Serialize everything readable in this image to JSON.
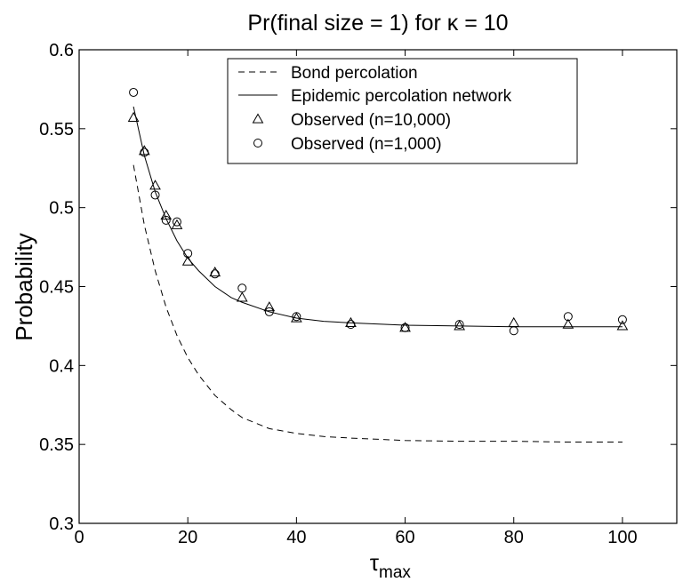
{
  "chart_data": {
    "type": "line",
    "title": "Pr(final size = 1) for κ = 10",
    "xlabel": "τ",
    "xlabel_sub": "max",
    "ylabel": "Probability",
    "xlim": [
      0,
      110
    ],
    "ylim": [
      0.3,
      0.6
    ],
    "xticks": [
      0,
      20,
      40,
      60,
      80,
      100
    ],
    "yticks": [
      0.3,
      0.35,
      0.4,
      0.45,
      0.5,
      0.55,
      0.6
    ],
    "xtick_labels": [
      "0",
      "20",
      "40",
      "60",
      "80",
      "100"
    ],
    "ytick_labels": [
      "0.3",
      "0.35",
      "0.4",
      "0.45",
      "0.5",
      "0.55",
      "0.6"
    ],
    "grid": false,
    "legend_position": "top-right",
    "series": [
      {
        "name": "Bond percolation",
        "style": "dashed-line",
        "x": [
          10,
          12,
          14,
          16,
          18,
          20,
          22,
          25,
          28,
          30,
          35,
          40,
          45,
          50,
          60,
          70,
          80,
          90,
          100
        ],
        "y": [
          0.527,
          0.489,
          0.46,
          0.437,
          0.419,
          0.405,
          0.394,
          0.381,
          0.372,
          0.367,
          0.36,
          0.357,
          0.355,
          0.354,
          0.3525,
          0.352,
          0.352,
          0.3515,
          0.3515
        ]
      },
      {
        "name": "Epidemic percolation network",
        "style": "solid-line",
        "x": [
          10,
          12,
          14,
          16,
          18,
          20,
          22,
          25,
          28,
          30,
          35,
          40,
          45,
          50,
          60,
          70,
          80,
          90,
          100
        ],
        "y": [
          0.564,
          0.533,
          0.51,
          0.493,
          0.479,
          0.468,
          0.46,
          0.45,
          0.443,
          0.44,
          0.434,
          0.43,
          0.428,
          0.427,
          0.4255,
          0.425,
          0.4245,
          0.4245,
          0.4245
        ]
      },
      {
        "name": "Observed (n=10,000)",
        "style": "triangle-marker",
        "x": [
          10,
          12,
          14,
          16,
          18,
          20,
          25,
          30,
          35,
          40,
          50,
          60,
          70,
          80,
          90,
          100
        ],
        "y": [
          0.557,
          0.536,
          0.514,
          0.495,
          0.489,
          0.466,
          0.459,
          0.443,
          0.437,
          0.43,
          0.427,
          0.424,
          0.425,
          0.427,
          0.426,
          0.425
        ]
      },
      {
        "name": "Observed (n=1,000)",
        "style": "circle-marker",
        "x": [
          10,
          12,
          14,
          16,
          18,
          20,
          25,
          30,
          35,
          40,
          50,
          60,
          70,
          80,
          90,
          100
        ],
        "y": [
          0.573,
          0.535,
          0.508,
          0.492,
          0.491,
          0.471,
          0.458,
          0.449,
          0.434,
          0.431,
          0.426,
          0.424,
          0.426,
          0.422,
          0.431,
          0.429
        ]
      }
    ]
  }
}
